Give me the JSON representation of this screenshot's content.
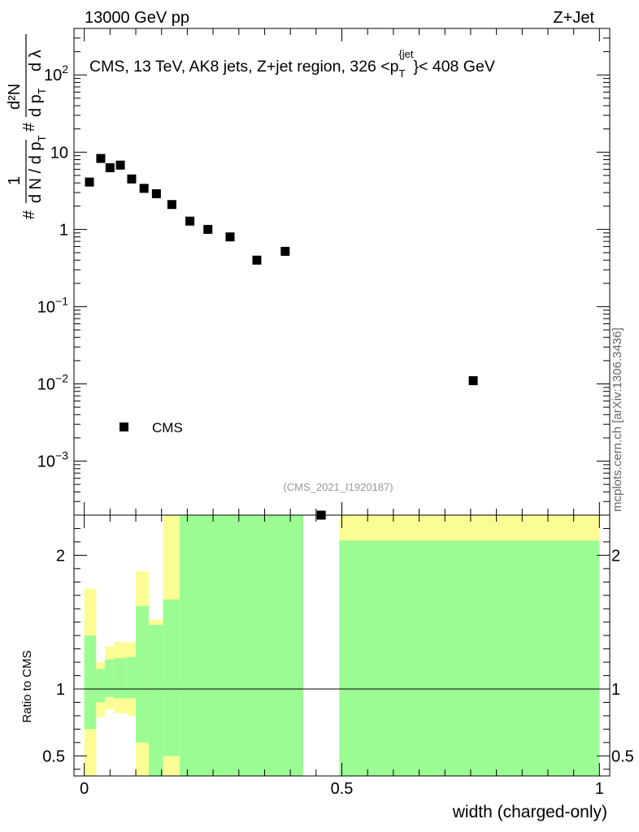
{
  "header": {
    "left": "13000 GeV pp",
    "right": "Z+Jet",
    "watermark": "mcplots.cern.ch [arXiv:1306.3436]",
    "analysis_id": "(CMS_2021_I1920187)"
  },
  "chart_data": [
    {
      "panel": "main",
      "type": "scatter",
      "title": "CMS, 13 TeV, AK8 jets, Z+jet region, 326 <p_T^{jet}< 408 GeV",
      "title_parts": {
        "before": "CMS, 13 TeV, AK8 jets, Z+jet region, 326 <p",
        "sub": "T",
        "sup": "{jet",
        "after": "}< 408 GeV"
      },
      "ylabel_parts": {
        "hash1": "#",
        "frac": "1",
        "den": "d N / d p",
        "sub": "T",
        "hash2": "#",
        "num2": "d²N",
        "den2": "d p",
        "sub2": "T",
        "dl": "d λ"
      },
      "yscale": "log",
      "ylim": [
        0.0002,
        400
      ],
      "xlim": [
        -0.02,
        1.02
      ],
      "y_ticks": [
        {
          "v": 100,
          "base": "10",
          "exp": "2"
        },
        {
          "v": 10,
          "base": "10",
          "exp": ""
        },
        {
          "v": 1,
          "base": "1",
          "exp": ""
        },
        {
          "v": 0.1,
          "base": "10",
          "exp": "−1"
        },
        {
          "v": 0.01,
          "base": "10",
          "exp": "−2"
        },
        {
          "v": 0.001,
          "base": "10",
          "exp": "−3"
        }
      ],
      "legend": {
        "label": "CMS",
        "position": "lower-left"
      },
      "series": [
        {
          "name": "CMS",
          "color": "#000000",
          "marker": "square",
          "points": [
            {
              "x": 0.01,
              "y": 4.1
            },
            {
              "x": 0.032,
              "y": 8.3
            },
            {
              "x": 0.05,
              "y": 6.3
            },
            {
              "x": 0.07,
              "y": 6.8
            },
            {
              "x": 0.092,
              "y": 4.5
            },
            {
              "x": 0.116,
              "y": 3.4
            },
            {
              "x": 0.14,
              "y": 2.9
            },
            {
              "x": 0.17,
              "y": 2.1
            },
            {
              "x": 0.205,
              "y": 1.28
            },
            {
              "x": 0.24,
              "y": 1.0
            },
            {
              "x": 0.283,
              "y": 0.8
            },
            {
              "x": 0.335,
              "y": 0.4
            },
            {
              "x": 0.39,
              "y": 0.52
            },
            {
              "x": 0.46,
              "y": 0.0002
            },
            {
              "x": 0.755,
              "y": 0.011
            }
          ]
        }
      ]
    },
    {
      "panel": "ratio",
      "type": "area",
      "ylabel": "Ratio to CMS",
      "xlabel": "width (charged-only)",
      "xlim": [
        -0.02,
        1.02
      ],
      "ylim": [
        0.35,
        2.3
      ],
      "x_ticks": [
        {
          "v": 0,
          "label": "0"
        },
        {
          "v": 0.5,
          "label": "0.5"
        },
        {
          "v": 1,
          "label": "1"
        }
      ],
      "y_ticks": [
        {
          "v": 2,
          "label": "2"
        },
        {
          "v": 1,
          "label": "1"
        },
        {
          "v": 0.5,
          "label": "0.5"
        }
      ],
      "band_colors": {
        "inner": "#9cfc94",
        "outer": "#fcfc94"
      },
      "reference_line": 1,
      "bins": [
        {
          "x0": 0.0,
          "x1": 0.023,
          "outer": [
            0.0,
            1.75
          ],
          "inner": [
            0.7,
            1.4
          ]
        },
        {
          "x0": 0.023,
          "x1": 0.04,
          "outer": [
            0.79,
            1.2
          ],
          "inner": [
            0.9,
            1.15
          ]
        },
        {
          "x0": 0.04,
          "x1": 0.058,
          "outer": [
            0.85,
            1.32
          ],
          "inner": [
            0.94,
            1.22
          ]
        },
        {
          "x0": 0.058,
          "x1": 0.083,
          "outer": [
            0.82,
            1.35
          ],
          "inner": [
            0.93,
            1.23
          ]
        },
        {
          "x0": 0.083,
          "x1": 0.1,
          "outer": [
            0.8,
            1.35
          ],
          "inner": [
            0.93,
            1.24
          ]
        },
        {
          "x0": 0.1,
          "x1": 0.125,
          "outer": [
            0.0,
            1.88
          ],
          "inner": [
            0.6,
            1.62
          ]
        },
        {
          "x0": 0.125,
          "x1": 0.153,
          "outer": [
            0.0,
            1.52
          ],
          "inner": [
            0.3,
            1.48
          ]
        },
        {
          "x0": 0.153,
          "x1": 0.185,
          "outer": [
            0.0,
            2.3
          ],
          "inner": [
            0.5,
            1.67
          ]
        },
        {
          "x0": 0.185,
          "x1": 0.425,
          "outer": [
            0.0,
            2.3
          ],
          "inner": [
            0.0,
            2.3
          ]
        },
        {
          "x0": 0.495,
          "x1": 1.0,
          "outer": [
            0.0,
            2.3
          ],
          "inner": [
            0.0,
            2.11
          ]
        }
      ]
    }
  ]
}
